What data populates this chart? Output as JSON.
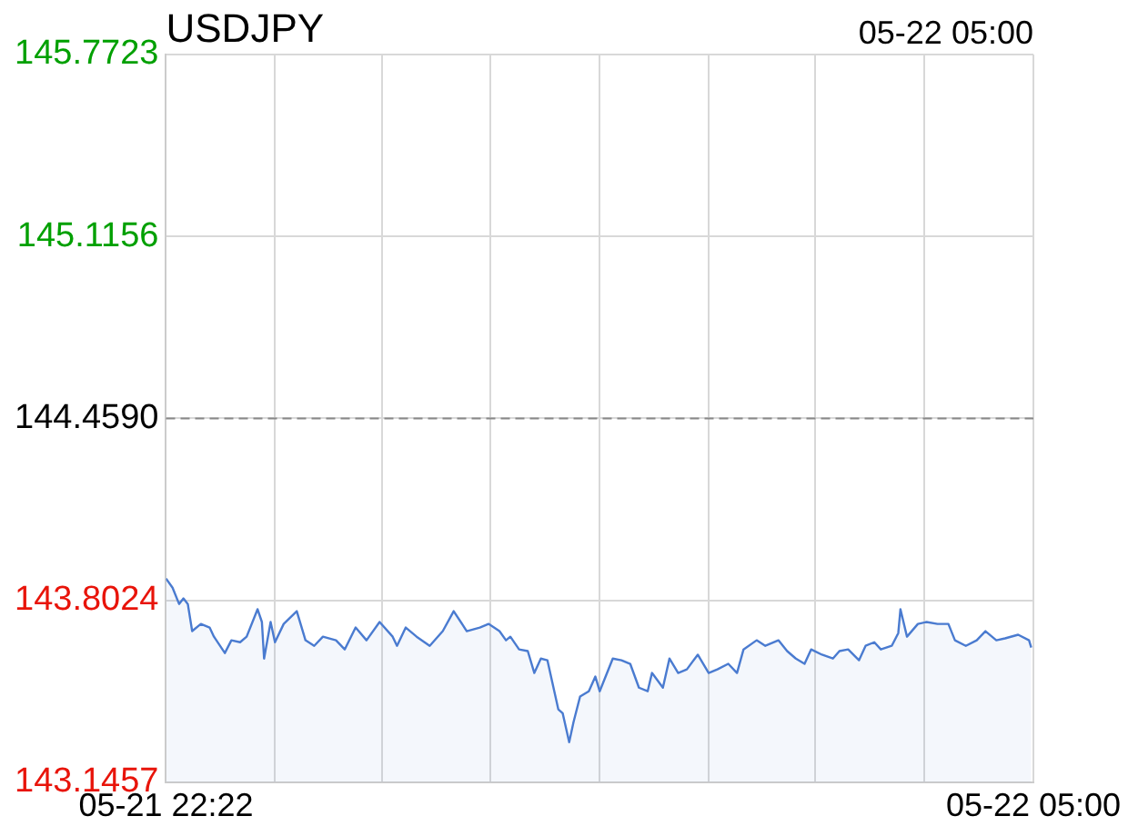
{
  "chart_data": {
    "type": "area",
    "title": "USDJPY",
    "annotations": [
      "05-22 05:00"
    ],
    "x": [
      "--05-21T22:22",
      "--05-21T22:25",
      "--05-21T22:28",
      "--05-21T22:30",
      "--05-21T22:32",
      "--05-21T22:34",
      "--05-21T22:38",
      "--05-21T22:42",
      "--05-21T22:44",
      "--05-21T22:49",
      "--05-21T22:52",
      "--05-21T22:56",
      "--05-21T22:59",
      "--05-21T23:04",
      "--05-21T23:06",
      "--05-21T23:07",
      "--05-21T23:10",
      "--05-21T23:12",
      "--05-21T23:16",
      "--05-21T23:22",
      "--05-21T23:26",
      "--05-21T23:30",
      "--05-21T23:34",
      "--05-21T23:40",
      "--05-21T23:44",
      "--05-21T23:49",
      "--05-21T23:54",
      "--05-22T00:00",
      "--05-22T00:06",
      "--05-22T00:08",
      "--05-22T00:12",
      "--05-22T00:17",
      "--05-22T00:23",
      "--05-22T00:29",
      "--05-22T00:34",
      "--05-22T00:40",
      "--05-22T00:46",
      "--05-22T00:50",
      "--05-22T00:55",
      "--05-22T00:58",
      "--05-22T01:00",
      "--05-22T01:04",
      "--05-22T01:08",
      "--05-22T01:11",
      "--05-22T01:14",
      "--05-22T01:17",
      "--05-22T01:22",
      "--05-22T01:24",
      "--05-22T01:27",
      "--05-22T01:29",
      "--05-22T01:32",
      "--05-22T01:36",
      "--05-22T01:39",
      "--05-22T01:41",
      "--05-22T01:47",
      "--05-22T01:51",
      "--05-22T01:55",
      "--05-22T01:59",
      "--05-22T02:03",
      "--05-22T02:05",
      "--05-22T02:10",
      "--05-22T02:13",
      "--05-22T02:17",
      "--05-22T02:21",
      "--05-22T02:26",
      "--05-22T02:31",
      "--05-22T02:35",
      "--05-22T02:40",
      "--05-22T02:44",
      "--05-22T02:47",
      "--05-22T02:53",
      "--05-22T02:57",
      "--05-22T03:03",
      "--05-22T03:07",
      "--05-22T03:11",
      "--05-22T03:15",
      "--05-22T03:18",
      "--05-22T03:23",
      "--05-22T03:28",
      "--05-22T03:31",
      "--05-22T03:35",
      "--05-22T03:40",
      "--05-22T03:43",
      "--05-22T03:47",
      "--05-22T03:50",
      "--05-22T03:55",
      "--05-22T03:58",
      "--05-22T03:59",
      "--05-22T04:02",
      "--05-22T04:07",
      "--05-22T04:11",
      "--05-22T04:16",
      "--05-22T04:21",
      "--05-22T04:24",
      "--05-22T04:29",
      "--05-22T04:34",
      "--05-22T04:38",
      "--05-22T04:43",
      "--05-22T04:47",
      "--05-22T04:53",
      "--05-22T04:58",
      "--05-22T04:59"
    ],
    "series": [
      {
        "color": "#4a7bd0",
        "values": [
          143.881,
          143.848,
          143.789,
          143.809,
          143.789,
          143.691,
          143.717,
          143.704,
          143.671,
          143.612,
          143.658,
          143.651,
          143.671,
          143.77,
          143.724,
          143.592,
          143.724,
          143.651,
          143.717,
          143.763,
          143.658,
          143.638,
          143.671,
          143.658,
          143.625,
          143.704,
          143.658,
          143.724,
          143.671,
          143.638,
          143.704,
          143.671,
          143.638,
          143.691,
          143.763,
          143.691,
          143.704,
          143.717,
          143.691,
          143.658,
          143.671,
          143.625,
          143.619,
          143.54,
          143.592,
          143.586,
          143.409,
          143.395,
          143.29,
          143.363,
          143.455,
          143.474,
          143.527,
          143.474,
          143.592,
          143.586,
          143.573,
          143.487,
          143.474,
          143.54,
          143.487,
          143.592,
          143.54,
          143.553,
          143.606,
          143.54,
          143.553,
          143.573,
          143.54,
          143.625,
          143.658,
          143.638,
          143.658,
          143.619,
          143.592,
          143.573,
          143.625,
          143.606,
          143.592,
          143.619,
          143.625,
          143.586,
          143.638,
          143.651,
          143.625,
          143.638,
          143.684,
          143.77,
          143.671,
          143.717,
          143.724,
          143.717,
          143.717,
          143.658,
          143.638,
          143.658,
          143.691,
          143.658,
          143.665,
          143.678,
          143.658,
          143.632
        ]
      }
    ],
    "xlim": [
      "--05-21T22:22",
      "--05-22T05:00"
    ],
    "xticks": [
      {
        "value": "--05-21T22:22",
        "label": "05-21 22:22"
      },
      {
        "value": "--05-21T23:12",
        "label": null
      },
      {
        "value": "--05-22T00:01",
        "label": null
      },
      {
        "value": "--05-22T00:51",
        "label": null
      },
      {
        "value": "--05-22T01:41",
        "label": null
      },
      {
        "value": "--05-22T02:31",
        "label": null
      },
      {
        "value": "--05-22T03:20",
        "label": null
      },
      {
        "value": "--05-22T04:10",
        "label": null
      },
      {
        "value": "--05-22T05:00",
        "label": "05-22 05:00"
      }
    ],
    "ylim": [
      143.1457,
      145.7723
    ],
    "yticks": [
      143.1457,
      143.8024,
      {
        "value": 144.459,
        "label": "144.4590"
      },
      145.1156,
      145.7723
    ],
    "ref_lines": [
      {
        "axis": "y",
        "value": 144.459,
        "color": "#888888",
        "line_style": "dashed"
      }
    ],
    "grid": true,
    "legend": false,
    "marker": "none",
    "line_style": "solid"
  }
}
